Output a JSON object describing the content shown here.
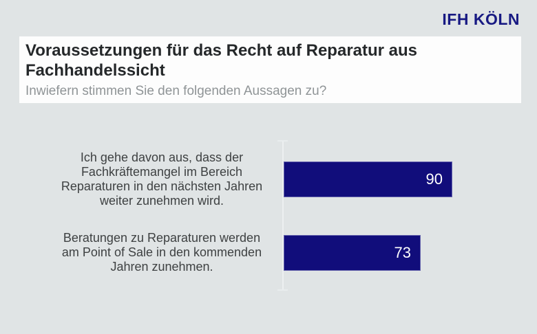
{
  "logo": {
    "text": "IFH KÖLN"
  },
  "header": {
    "title": "Voraussetzungen für das Recht auf Reparatur aus Fachhandelssicht",
    "title_line1": "Voraussetzungen für das Recht auf Reparatur aus",
    "title_line2": "Fachhandelssicht",
    "subtitle": "Inwiefern stimmen Sie den folgenden Aussagen zu?"
  },
  "labels": {
    "row1": {
      "line1": "Ich gehe davon aus, dass der",
      "line2": "Fachkräftemangel im Bereich",
      "line3": "Reparaturen in den nächsten Jahren",
      "line4": "weiter zunehmen wird."
    },
    "row2": {
      "line1": "Beratungen zu Reparaturen werden",
      "line2": "am Point of Sale in den kommenden",
      "line3": "Jahren zunehmen."
    }
  },
  "chart_data": {
    "type": "bar",
    "orientation": "horizontal",
    "title": "Voraussetzungen für das Recht auf Reparatur aus Fachhandelssicht",
    "subtitle": "Inwiefern stimmen Sie den folgenden Aussagen zu?",
    "categories": [
      "Ich gehe davon aus, dass der Fachkräftemangel im Bereich Reparaturen in den nächsten Jahren weiter zunehmen wird.",
      "Beratungen zu Reparaturen werden am Point of Sale in den kommenden Jahren zunehmen."
    ],
    "values": [
      90,
      73
    ],
    "value_labels": [
      "90",
      "73"
    ],
    "xlim": [
      0,
      100
    ],
    "grid": false,
    "legend": false,
    "bar_color": "#110D7B",
    "value_label_color": "#FFFFFF"
  },
  "colors": {
    "background": "#E0E4E5",
    "title_band": "#FDFDFD",
    "title_text": "#25282A",
    "subtitle_text": "#8F9496",
    "label_text": "#3E4142",
    "brand_navy": "#181A83",
    "bar_navy": "#110D7B",
    "axis_line": "#EDF0F1"
  }
}
